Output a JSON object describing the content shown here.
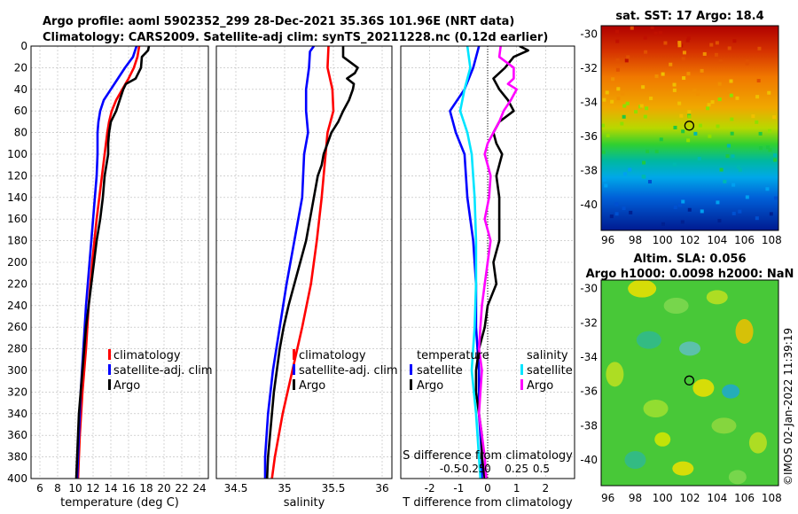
{
  "titles": {
    "line1": "Argo profile: aoml 5902352_299 28-Dec-2021 35.36S 101.96E (NRT data)",
    "line2": "Climatology: CARS2009. Satellite-adj clim: synTS_20211228.nc (0.12d earlier)"
  },
  "colors": {
    "climatology": "#ff0000",
    "satellite_adj": "#0000ff",
    "argo": "#000000",
    "sal_satellite": "#00e5ff",
    "sal_argo": "#ff00ff",
    "grid": "#b8b8b8"
  },
  "chart_data": [
    {
      "type": "line",
      "name": "temperature",
      "xlabel": "temperature (deg C)",
      "ylabel": "",
      "xlim": [
        5,
        25
      ],
      "ylim": [
        400,
        0
      ],
      "xticks": [
        6,
        8,
        10,
        12,
        14,
        16,
        18,
        20,
        22,
        24
      ],
      "yticks": [
        0,
        20,
        40,
        60,
        80,
        100,
        120,
        140,
        160,
        180,
        200,
        220,
        240,
        260,
        280,
        300,
        320,
        340,
        360,
        380,
        400
      ],
      "legend": [
        "climatology",
        "satellite-adj. clim",
        "Argo"
      ],
      "series": [
        {
          "name": "climatology",
          "depth": [
            0,
            10,
            20,
            30,
            40,
            50,
            60,
            70,
            80,
            100,
            120,
            140,
            160,
            200,
            240,
            280,
            320,
            360,
            400
          ],
          "values": [
            17.2,
            17.0,
            16.6,
            16.0,
            15.3,
            14.6,
            14.1,
            13.8,
            13.6,
            13.3,
            13.0,
            12.7,
            12.4,
            11.9,
            11.5,
            11.2,
            10.8,
            10.5,
            10.3
          ]
        },
        {
          "name": "satellite-adj. clim",
          "depth": [
            0,
            10,
            20,
            30,
            40,
            50,
            60,
            70,
            80,
            100,
            120,
            140,
            160,
            200,
            240,
            280,
            320,
            360,
            400
          ],
          "values": [
            16.9,
            16.5,
            15.6,
            14.8,
            14.0,
            13.2,
            12.8,
            12.6,
            12.5,
            12.5,
            12.4,
            12.2,
            12.0,
            11.6,
            11.2,
            10.9,
            10.6,
            10.4,
            10.2
          ]
        },
        {
          "name": "Argo",
          "depth": [
            0,
            4,
            10,
            20,
            30,
            35,
            40,
            50,
            60,
            70,
            80,
            90,
            100,
            110,
            120,
            140,
            160,
            180,
            200,
            220,
            240,
            260,
            280,
            300,
            320,
            340,
            360,
            380,
            400
          ],
          "values": [
            18.3,
            18.2,
            17.5,
            17.4,
            16.8,
            15.7,
            15.4,
            15.0,
            14.6,
            14.0,
            13.8,
            13.7,
            13.7,
            13.5,
            13.3,
            13.1,
            12.8,
            12.4,
            12.1,
            11.8,
            11.5,
            11.2,
            11.0,
            10.8,
            10.6,
            10.4,
            10.3,
            10.2,
            10.1
          ]
        }
      ]
    },
    {
      "type": "line",
      "name": "salinity",
      "xlabel": "salinity",
      "ylabel": "",
      "xlim": [
        34.3,
        36.1
      ],
      "ylim": [
        400,
        0
      ],
      "xticks": [
        34.5,
        35,
        35.5,
        36
      ],
      "legend": [
        "climatology",
        "satellite-adj. clim",
        "Argo"
      ],
      "series": [
        {
          "name": "climatology",
          "depth": [
            0,
            20,
            40,
            60,
            80,
            100,
            140,
            180,
            220,
            260,
            300,
            340,
            380,
            400
          ],
          "values": [
            35.45,
            35.44,
            35.49,
            35.5,
            35.44,
            35.42,
            35.38,
            35.33,
            35.27,
            35.18,
            35.08,
            34.98,
            34.9,
            34.87
          ]
        },
        {
          "name": "satellite-adj. clim",
          "depth": [
            0,
            5,
            20,
            40,
            60,
            80,
            100,
            140,
            180,
            220,
            260,
            300,
            340,
            380,
            400
          ],
          "values": [
            35.3,
            35.26,
            35.25,
            35.22,
            35.22,
            35.24,
            35.2,
            35.18,
            35.1,
            35.02,
            34.95,
            34.88,
            34.83,
            34.8,
            34.8
          ]
        },
        {
          "name": "Argo",
          "depth": [
            0,
            10,
            20,
            25,
            30,
            35,
            40,
            50,
            60,
            70,
            80,
            90,
            100,
            110,
            120,
            140,
            160,
            180,
            200,
            220,
            240,
            260,
            280,
            300,
            320,
            340,
            360,
            380,
            400
          ],
          "values": [
            35.6,
            35.6,
            35.75,
            35.72,
            35.64,
            35.71,
            35.7,
            35.66,
            35.6,
            35.55,
            35.48,
            35.44,
            35.4,
            35.38,
            35.34,
            35.3,
            35.26,
            35.22,
            35.16,
            35.1,
            35.04,
            34.99,
            34.95,
            34.92,
            34.89,
            34.87,
            34.85,
            34.83,
            34.82
          ]
        }
      ]
    },
    {
      "type": "line",
      "name": "differences",
      "xlabel": "T difference from climatology",
      "xlabel_top": "S difference from climatology",
      "xlim": [
        -3,
        3
      ],
      "ylim": [
        400,
        0
      ],
      "xticks": [
        -2,
        -1,
        0,
        1,
        2
      ],
      "s_ticks": [
        "-0.5",
        "-0.25",
        "0",
        "0.25",
        "0.5"
      ],
      "legend_temperature": {
        "title": "temperature",
        "items": [
          "satellite",
          "Argo"
        ]
      },
      "legend_salinity": {
        "title": "salinity",
        "items": [
          "satellite",
          "Argo"
        ]
      },
      "series": [
        {
          "name": "temperature satellite",
          "depth": [
            0,
            20,
            40,
            60,
            80,
            100,
            140,
            180,
            220,
            260,
            300,
            340,
            380,
            400
          ],
          "values": [
            -0.3,
            -0.5,
            -0.8,
            -1.3,
            -1.1,
            -0.8,
            -0.7,
            -0.5,
            -0.4,
            -0.4,
            -0.3,
            -0.3,
            -0.2,
            -0.2
          ]
        },
        {
          "name": "temperature Argo",
          "depth": [
            0,
            4,
            10,
            20,
            30,
            40,
            50,
            60,
            70,
            80,
            90,
            100,
            120,
            140,
            160,
            180,
            200,
            220,
            240,
            260,
            280,
            300,
            320,
            340,
            360,
            380,
            400
          ],
          "values": [
            1.1,
            1.4,
            0.9,
            0.6,
            0.2,
            0.4,
            0.7,
            0.9,
            0.4,
            0.2,
            0.3,
            0.5,
            0.3,
            0.4,
            0.4,
            0.4,
            0.2,
            0.3,
            0.0,
            -0.1,
            -0.3,
            -0.4,
            -0.4,
            -0.3,
            -0.2,
            -0.2,
            -0.1
          ]
        },
        {
          "name": "salinity satellite",
          "depth": [
            0,
            20,
            40,
            60,
            80,
            100,
            140,
            180,
            220,
            260,
            300,
            340,
            380,
            400
          ],
          "values": [
            -0.7,
            -0.6,
            -0.8,
            -0.95,
            -0.7,
            -0.55,
            -0.45,
            -0.4,
            -0.4,
            -0.45,
            -0.55,
            -0.4,
            -0.3,
            -0.25
          ]
        },
        {
          "name": "salinity Argo",
          "depth": [
            0,
            10,
            20,
            30,
            35,
            40,
            50,
            60,
            70,
            80,
            90,
            100,
            120,
            140,
            160,
            180,
            200,
            220,
            240,
            260,
            280,
            300,
            320,
            340,
            360,
            380,
            400
          ],
          "values": [
            0.45,
            0.4,
            0.9,
            0.9,
            0.7,
            1.0,
            0.8,
            0.55,
            0.4,
            0.2,
            0.0,
            -0.1,
            0.1,
            0.05,
            -0.1,
            0.1,
            0.0,
            -0.1,
            -0.2,
            -0.25,
            -0.3,
            -0.2,
            -0.25,
            -0.3,
            -0.2,
            -0.1,
            -0.05
          ]
        }
      ]
    },
    {
      "type": "heatmap",
      "name": "sst_map",
      "title": "sat. SST: 17 Argo: 18.4",
      "xlim": [
        95.5,
        108.5
      ],
      "ylim": [
        -41.5,
        -29.5
      ],
      "xticks": [
        96,
        98,
        100,
        102,
        104,
        106,
        108
      ],
      "yticks": [
        -30,
        -32,
        -34,
        -36,
        -38,
        -40
      ],
      "marker": {
        "lon": 101.96,
        "lat": -35.36
      }
    },
    {
      "type": "heatmap",
      "name": "sla_map",
      "title_line1": "Altim. SLA: 0.056",
      "title_line2": "Argo h1000: 0.0098 h2000: NaN",
      "xlim": [
        95.5,
        108.5
      ],
      "ylim": [
        -41.5,
        -29.5
      ],
      "xticks": [
        96,
        98,
        100,
        102,
        104,
        106,
        108
      ],
      "yticks": [
        -30,
        -32,
        -34,
        -36,
        -38,
        -40
      ],
      "marker": {
        "lon": 101.96,
        "lat": -35.36
      }
    }
  ],
  "stamp": "©IMOS 02-Jan-2022 11:39:19"
}
